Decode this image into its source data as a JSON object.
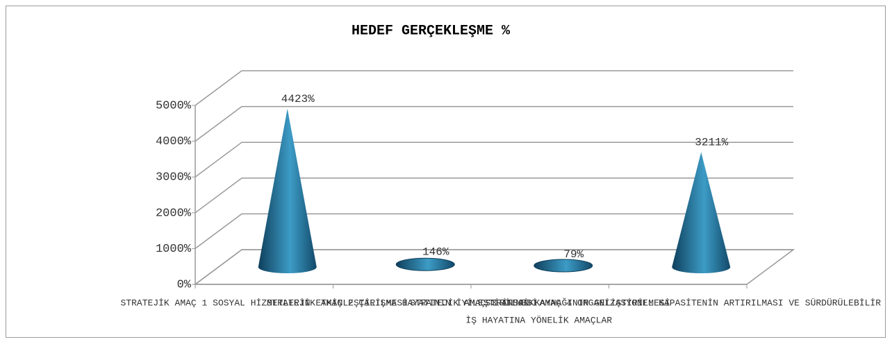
{
  "chart_data": {
    "type": "cone",
    "title": "HEDEF GERÇEKLEŞME  %",
    "categories": [
      "STRATEJİK AMAÇ 1 SOSYAL HİZMETLERİN ETKİNLEŞTİRİLMESİ",
      "STRATEJİK AMAÇ 2 ÇALIŞMA HAYATININ İYİLEŞTİRİLMESİ",
      "STRATEJİK AMAÇ 3 İNSAN KAYNAĞININ GELİŞTİRİLMESİ",
      [
        "STRATEJİK AMAÇ 4 ORGANİZASYONEL KAPASİTENİN ARTIRILMASI VE SÜRDÜRÜLEBİLİR",
        "İŞ HAYATINA YÖNELİK AMAÇLAR"
      ]
    ],
    "values": [
      4423,
      146,
      79,
      3211
    ],
    "value_labels": [
      "4423%",
      "146%",
      "79%",
      "3211%"
    ],
    "color": "#1f6a8e",
    "ylim": [
      0,
      5000
    ],
    "yticks": [
      {
        "value": 0,
        "label": "0%"
      },
      {
        "value": 1000,
        "label": "1000%"
      },
      {
        "value": 2000,
        "label": "2000%"
      },
      {
        "value": 3000,
        "label": "3000%"
      },
      {
        "value": 4000,
        "label": "4000%"
      },
      {
        "value": 5000,
        "label": "5000%"
      }
    ],
    "grid": true
  }
}
